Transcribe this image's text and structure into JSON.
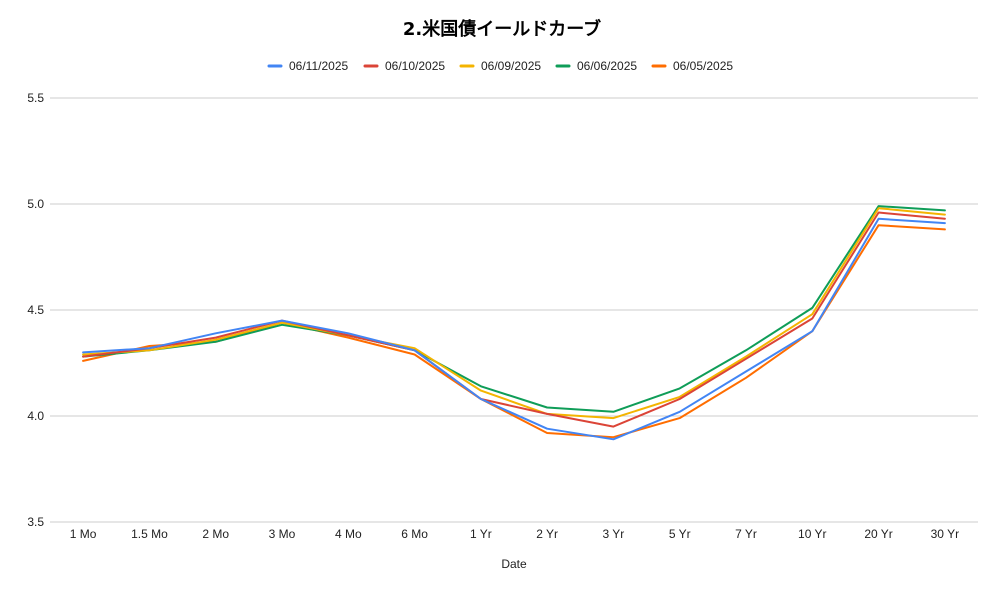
{
  "chart_data": {
    "type": "line",
    "title": "2.米国債イールドカーブ",
    "xlabel": "Date",
    "ylabel": "",
    "categories": [
      "1 Mo",
      "1.5 Mo",
      "2 Mo",
      "3 Mo",
      "4 Mo",
      "6 Mo",
      "1 Yr",
      "2 Yr",
      "3 Yr",
      "5 Yr",
      "7 Yr",
      "10 Yr",
      "20 Yr",
      "30 Yr"
    ],
    "ylim": [
      3.5,
      5.5
    ],
    "yticks": [
      "3.5",
      "4.0",
      "4.5",
      "5.0",
      "5.5"
    ],
    "grid": true,
    "legend_position": "top",
    "series": [
      {
        "name": "06/11/2025",
        "color": "#4285f4",
        "values": [
          4.3,
          4.32,
          4.39,
          4.45,
          4.39,
          4.31,
          4.08,
          3.94,
          3.89,
          4.02,
          4.21,
          4.4,
          4.93,
          4.91
        ]
      },
      {
        "name": "06/10/2025",
        "color": "#db4437",
        "values": [
          4.28,
          4.32,
          4.37,
          4.45,
          4.38,
          4.31,
          4.08,
          4.01,
          3.95,
          4.08,
          4.27,
          4.46,
          4.96,
          4.93
        ]
      },
      {
        "name": "06/09/2025",
        "color": "#f4b400",
        "values": [
          4.29,
          4.31,
          4.36,
          4.44,
          4.38,
          4.32,
          4.12,
          4.01,
          3.99,
          4.09,
          4.28,
          4.48,
          4.98,
          4.95
        ]
      },
      {
        "name": "06/06/2025",
        "color": "#0f9d58",
        "values": [
          4.28,
          4.31,
          4.35,
          4.43,
          4.38,
          4.31,
          4.14,
          4.04,
          4.02,
          4.13,
          4.31,
          4.51,
          4.99,
          4.97
        ]
      },
      {
        "name": "06/05/2025",
        "color": "#ff6d00",
        "values": [
          4.26,
          4.33,
          4.35,
          4.44,
          4.37,
          4.29,
          4.08,
          3.92,
          3.9,
          3.99,
          4.18,
          4.4,
          4.9,
          4.88
        ]
      }
    ]
  }
}
